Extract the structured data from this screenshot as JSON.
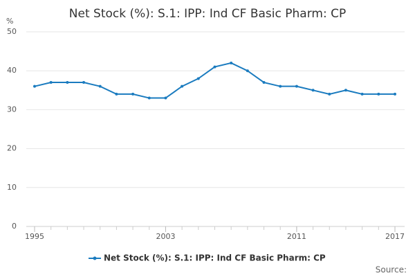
{
  "chart_data": {
    "type": "line",
    "title": "Net Stock (%): S.1: IPP: Ind CF Basic Pharm: CP",
    "y_label": "%",
    "source": "Source:",
    "x": [
      1995,
      1996,
      1997,
      1998,
      1999,
      2000,
      2001,
      2002,
      2003,
      2004,
      2005,
      2006,
      2007,
      2008,
      2009,
      2010,
      2011,
      2012,
      2013,
      2014,
      2015,
      2016,
      2017
    ],
    "series": [
      {
        "name": "Net Stock (%): S.1: IPP: Ind CF Basic Pharm: CP",
        "color": "#1a7bbf",
        "values": [
          36,
          37,
          37,
          37,
          36,
          34,
          34,
          33,
          33,
          36,
          38,
          41,
          42,
          40,
          37,
          36,
          36,
          35,
          34,
          35,
          34,
          34,
          34
        ]
      }
    ],
    "xlim": [
      1995,
      2017
    ],
    "xticks": [
      1995,
      2003,
      2011,
      2017
    ],
    "ylim": [
      0,
      50
    ],
    "yticks": [
      0,
      10,
      20,
      30,
      40,
      50
    ],
    "grid": true,
    "legend": "bottom"
  }
}
